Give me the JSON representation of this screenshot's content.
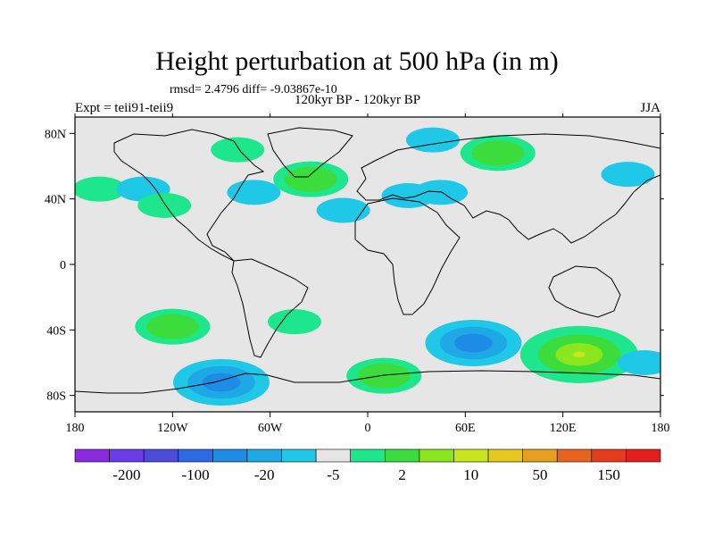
{
  "title": "Height perturbation at 500 hPa (in m)",
  "stats_text": "rmsd= 2.4796 diff= -9.03867e-10",
  "experiment_text": "Expt = teii91-teii9",
  "period_text": "120kyr BP - 120kyr BP",
  "season": "JJA",
  "map": {
    "projection": "cylindrical equidistant",
    "lon_range": [
      -180,
      180
    ],
    "lat_range": [
      -90,
      90
    ],
    "background_color": "#e6e6e6",
    "coastline_color": "#000000",
    "lon_ticks": [
      {
        "value": -180,
        "label": "180"
      },
      {
        "value": -120,
        "label": "120W"
      },
      {
        "value": -60,
        "label": "60W"
      },
      {
        "value": 0,
        "label": "0"
      },
      {
        "value": 60,
        "label": "60E"
      },
      {
        "value": 120,
        "label": "120E"
      },
      {
        "value": 180,
        "label": "180"
      }
    ],
    "lat_ticks": [
      {
        "value": 80,
        "label": "80N"
      },
      {
        "value": 40,
        "label": "40N"
      },
      {
        "value": 0,
        "label": "0"
      },
      {
        "value": -40,
        "label": "40S"
      },
      {
        "value": -80,
        "label": "80S"
      }
    ]
  },
  "colorbar": {
    "colors": [
      "#8a2be2",
      "#6a3be6",
      "#4b4bdc",
      "#2d6ae6",
      "#1e8ce6",
      "#1ea8e6",
      "#1ec8e6",
      "#e6e6e6",
      "#1ee68c",
      "#3cdc3c",
      "#8ce61e",
      "#c8e61e",
      "#e6c81e",
      "#e6a01e",
      "#e6641e",
      "#e63c1e",
      "#e61e1e"
    ],
    "labels": [
      "-200",
      "-100",
      "-20",
      "-5",
      "2",
      "10",
      "50",
      "150"
    ]
  },
  "chart_data": {
    "type": "heatmap",
    "variable": "Height perturbation at 500 hPa",
    "units": "m",
    "features": [
      {
        "lon": -165,
        "lat": 46,
        "value": 5,
        "level": "positive"
      },
      {
        "lon": -138,
        "lat": 46,
        "value": -5,
        "level": "negative"
      },
      {
        "lon": -125,
        "lat": 36,
        "value": 5,
        "level": "positive"
      },
      {
        "lon": -80,
        "lat": 70,
        "value": 5,
        "level": "positive"
      },
      {
        "lon": -70,
        "lat": 44,
        "value": -5,
        "level": "negative"
      },
      {
        "lon": -35,
        "lat": 52,
        "value": 10,
        "level": "positive"
      },
      {
        "lon": -15,
        "lat": 33,
        "value": -5,
        "level": "negative"
      },
      {
        "lon": 25,
        "lat": 42,
        "value": -5,
        "level": "negative"
      },
      {
        "lon": 45,
        "lat": 44,
        "value": -5,
        "level": "negative"
      },
      {
        "lon": 40,
        "lat": 76,
        "value": -5,
        "level": "negative"
      },
      {
        "lon": 80,
        "lat": 68,
        "value": 10,
        "level": "positive"
      },
      {
        "lon": 160,
        "lat": 55,
        "value": -5,
        "level": "negative"
      },
      {
        "lon": -120,
        "lat": -38,
        "value": 10,
        "level": "positive"
      },
      {
        "lon": -45,
        "lat": -35,
        "value": 5,
        "level": "positive"
      },
      {
        "lon": -90,
        "lat": -72,
        "value": -20,
        "level": "negative"
      },
      {
        "lon": 10,
        "lat": -68,
        "value": 10,
        "level": "positive"
      },
      {
        "lon": 65,
        "lat": -48,
        "value": -20,
        "level": "negative"
      },
      {
        "lon": 130,
        "lat": -55,
        "value": 50,
        "level": "positive"
      },
      {
        "lon": 170,
        "lat": -60,
        "value": -5,
        "level": "negative"
      }
    ]
  }
}
